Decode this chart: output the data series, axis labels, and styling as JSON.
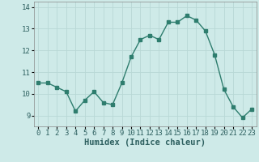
{
  "x": [
    0,
    1,
    2,
    3,
    4,
    5,
    6,
    7,
    8,
    9,
    10,
    11,
    12,
    13,
    14,
    15,
    16,
    17,
    18,
    19,
    20,
    21,
    22,
    23
  ],
  "y": [
    10.5,
    10.5,
    10.3,
    10.1,
    9.2,
    9.7,
    10.1,
    9.6,
    9.5,
    10.5,
    11.7,
    12.5,
    12.7,
    12.5,
    13.3,
    13.3,
    13.6,
    13.4,
    12.9,
    11.8,
    10.2,
    9.4,
    8.9,
    9.3
  ],
  "xlabel": "Humidex (Indice chaleur)",
  "xlim": [
    -0.5,
    23.5
  ],
  "ylim": [
    8.5,
    14.25
  ],
  "yticks": [
    9,
    10,
    11,
    12,
    13,
    14
  ],
  "xticks": [
    0,
    1,
    2,
    3,
    4,
    5,
    6,
    7,
    8,
    9,
    10,
    11,
    12,
    13,
    14,
    15,
    16,
    17,
    18,
    19,
    20,
    21,
    22,
    23
  ],
  "line_color": "#2e7d6e",
  "marker": "s",
  "marker_size": 2.5,
  "bg_color": "#ceeae8",
  "grid_color": "#b8d8d5",
  "label_fontsize": 7.5,
  "tick_fontsize": 6.5
}
